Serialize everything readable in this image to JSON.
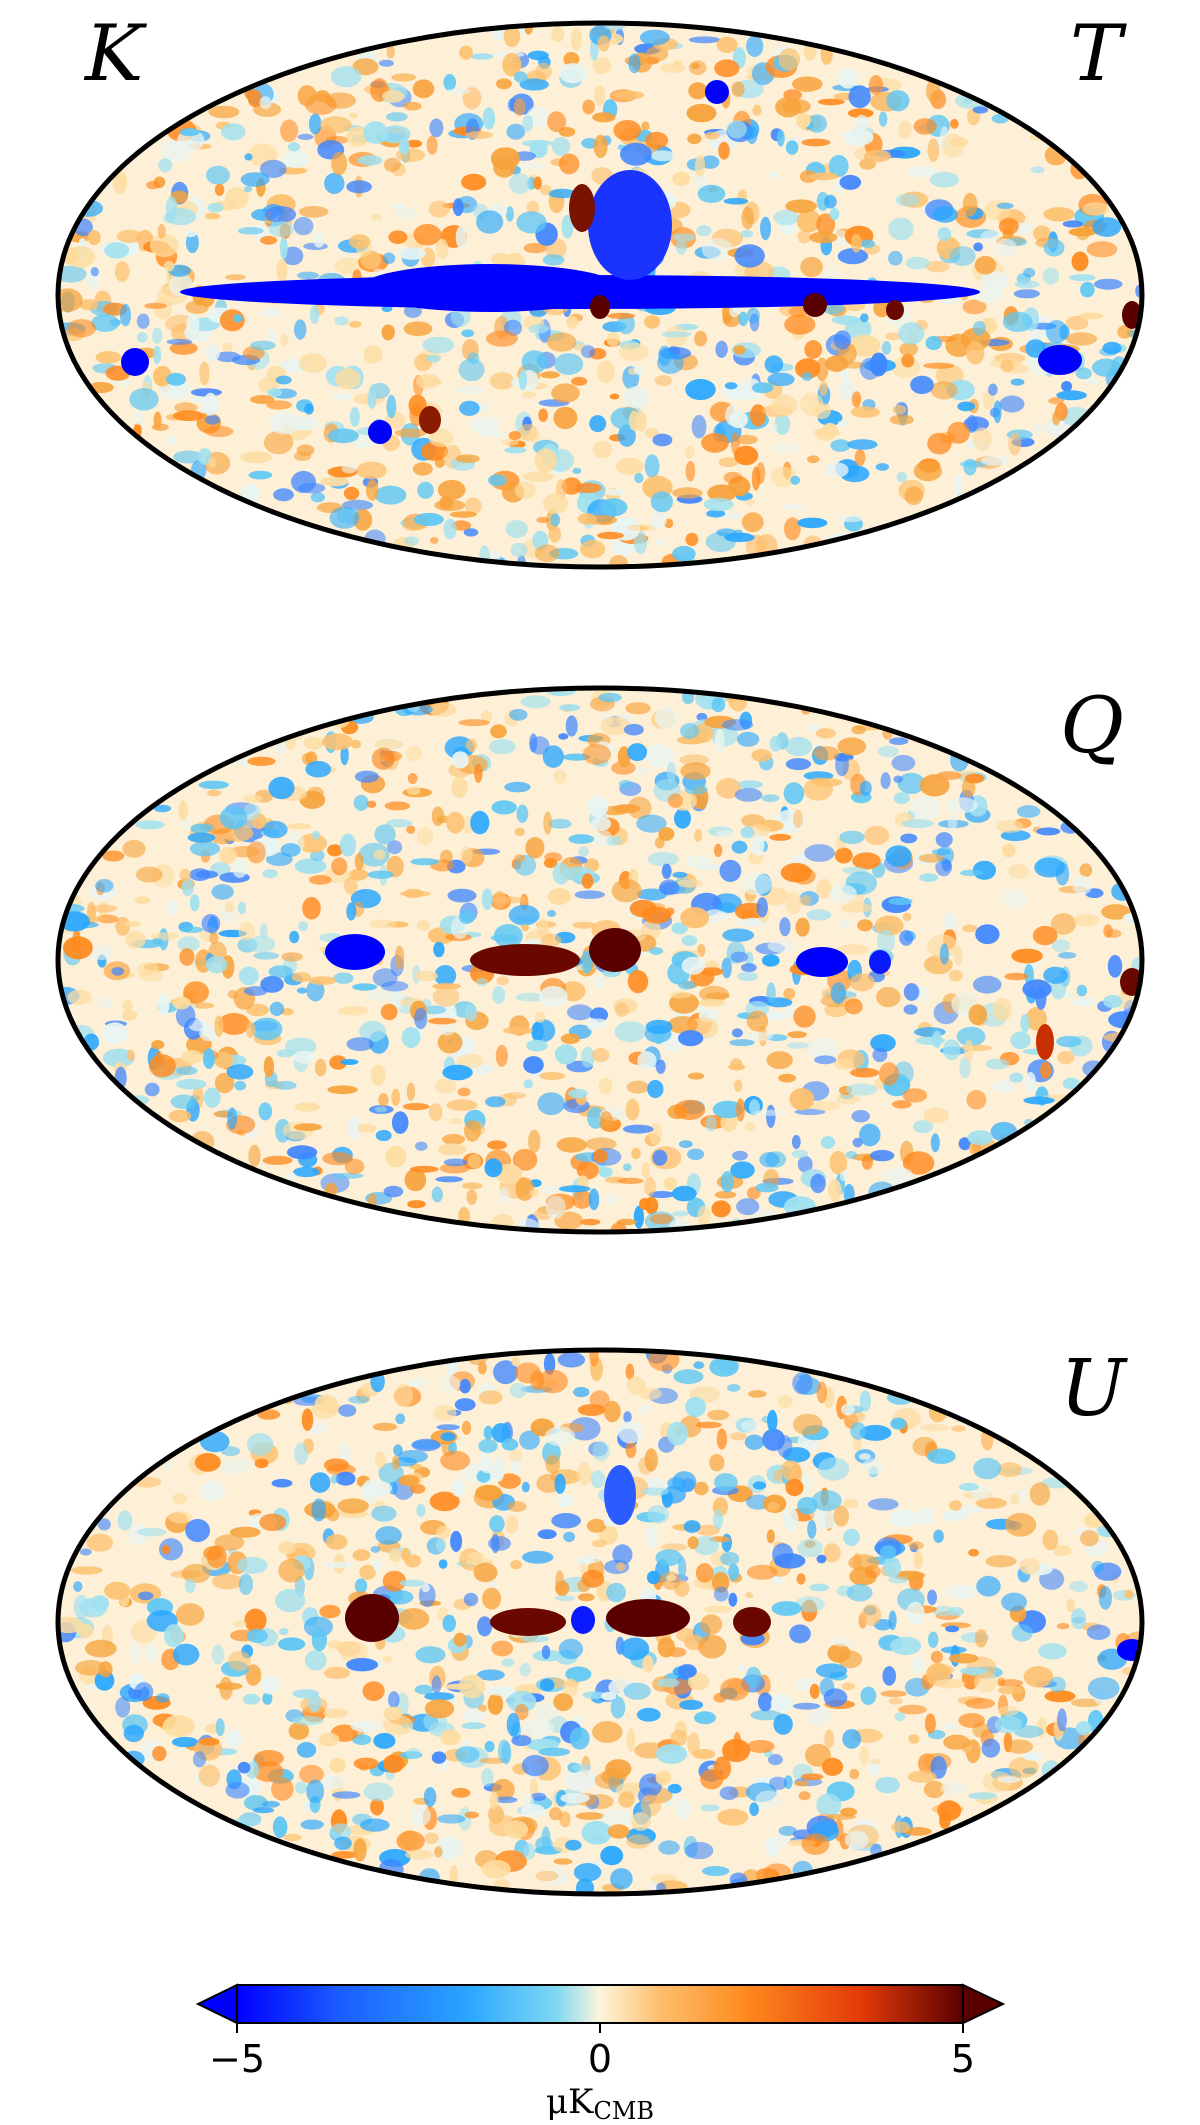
{
  "figure": {
    "band_label": "K",
    "panels": [
      {
        "id": "T",
        "label": "T"
      },
      {
        "id": "Q",
        "label": "Q"
      },
      {
        "id": "U",
        "label": "U"
      }
    ]
  },
  "colorbar": {
    "tick_labels": [
      "−5",
      "0",
      "5"
    ],
    "tick_values": [
      -5,
      0,
      5
    ],
    "range": [
      -5,
      5
    ],
    "extend": "both",
    "unit_main": "μK",
    "unit_sub": "CMB",
    "colormap": [
      "#0000ff",
      "#1a5cff",
      "#2aa7ff",
      "#7fd8f2",
      "#fdf5dc",
      "#fdc06e",
      "#ff8a1e",
      "#e33a08",
      "#5a0000"
    ]
  },
  "maps": {
    "projection": "mollweide",
    "frame_color": "#000000"
  }
}
